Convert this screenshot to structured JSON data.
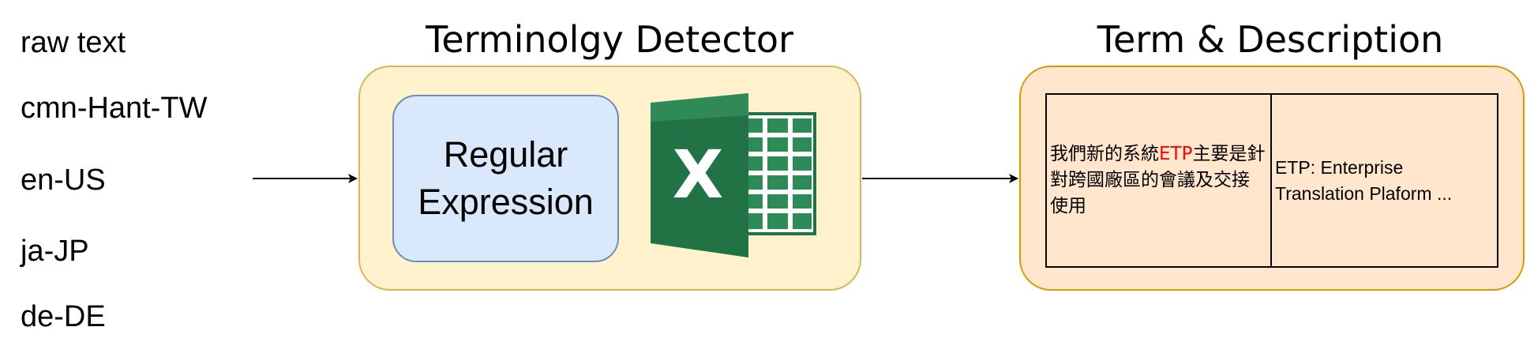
{
  "input_languages": {
    "header": "raw text",
    "items": [
      "cmn-Hant-TW",
      "en-US",
      "ja-JP",
      "de-DE"
    ]
  },
  "detector": {
    "title": "Terminolgy Detector",
    "regex_label_line1": "Regular",
    "regex_label_line2": "Expression",
    "excel_icon": "microsoft-excel-logo",
    "excel_letter": "X"
  },
  "output": {
    "title": "Term & Description",
    "sentence_before": "我們新的系統",
    "sentence_term": "ETP",
    "sentence_after": "主要是針對跨國廠區的會議及交接使用",
    "description": "ETP: Enterprise Translation Plaform ..."
  },
  "colors": {
    "detector_fill": "#fff2cc",
    "detector_stroke": "#d6b656",
    "regex_fill": "#dae8fc",
    "regex_stroke": "#6c8ebf",
    "output_fill": "#ffe6cc",
    "output_stroke": "#d79b00",
    "term_highlight": "#ff0000",
    "excel_green": "#217346"
  }
}
